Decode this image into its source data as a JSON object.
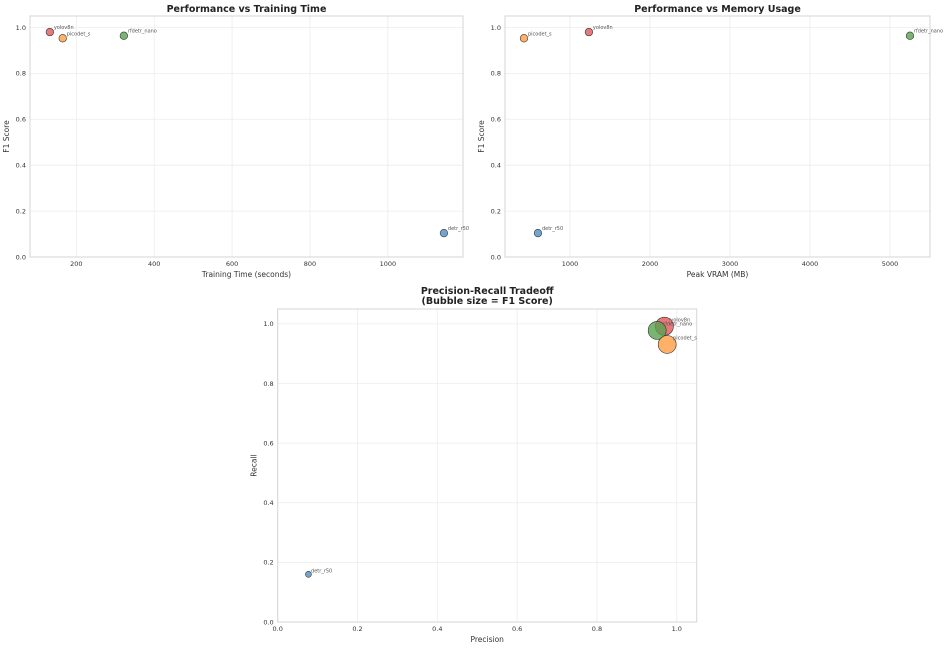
{
  "chart_data": [
    {
      "type": "scatter",
      "title": "Performance vs Training Time",
      "xlabel": "Training Time (seconds)",
      "ylabel": "F1 Score",
      "xlim": [
        81,
        1193
      ],
      "ylim": [
        0,
        1.05
      ],
      "xticks": [
        200,
        400,
        600,
        800,
        1000
      ],
      "yticks": [
        0.0,
        0.2,
        0.4,
        0.6,
        0.8,
        1.0
      ],
      "grid": true,
      "points": [
        {
          "label": "yolov8n",
          "x": 132,
          "y": 0.98,
          "color": "#e15759"
        },
        {
          "label": "picodet_s",
          "x": 165,
          "y": 0.953,
          "color": "#ff9d45"
        },
        {
          "label": "rfdetr_nano",
          "x": 322,
          "y": 0.964,
          "color": "#59a14f"
        },
        {
          "label": "detr_r50",
          "x": 1144,
          "y": 0.104,
          "color": "#4e8fc4"
        }
      ]
    },
    {
      "type": "scatter",
      "title": "Performance vs Memory Usage",
      "xlabel": "Peak VRAM (MB)",
      "ylabel": "F1 Score",
      "xlim": [
        188,
        5500
      ],
      "ylim": [
        0,
        1.05
      ],
      "xticks": [
        1000,
        2000,
        3000,
        4000,
        5000
      ],
      "yticks": [
        0.0,
        0.2,
        0.4,
        0.6,
        0.8,
        1.0
      ],
      "grid": true,
      "points": [
        {
          "label": "picodet_s",
          "x": 425,
          "y": 0.953,
          "color": "#ff9d45"
        },
        {
          "label": "yolov8n",
          "x": 1237,
          "y": 0.98,
          "color": "#e15759"
        },
        {
          "label": "rfdetr_nano",
          "x": 5250,
          "y": 0.964,
          "color": "#59a14f"
        },
        {
          "label": "detr_r50",
          "x": 600,
          "y": 0.104,
          "color": "#4e8fc4"
        }
      ]
    },
    {
      "type": "scatter",
      "title": "Precision-Recall Tradeoff",
      "subtitle": "(Bubble size = F1 Score)",
      "xlabel": "Precision",
      "ylabel": "Recall",
      "xlim": [
        0,
        1.05
      ],
      "ylim": [
        0,
        1.05
      ],
      "xticks": [
        0.0,
        0.2,
        0.4,
        0.6,
        0.8,
        1.0
      ],
      "yticks": [
        0.0,
        0.2,
        0.4,
        0.6,
        0.8,
        1.0
      ],
      "grid": true,
      "points": [
        {
          "label": "yolov8n",
          "x": 0.969,
          "y": 0.992,
          "size": 0.98,
          "color": "#e15759"
        },
        {
          "label": "rfdetr_nano",
          "x": 0.951,
          "y": 0.978,
          "size": 0.964,
          "color": "#59a14f"
        },
        {
          "label": "picodet_s",
          "x": 0.976,
          "y": 0.931,
          "size": 0.953,
          "color": "#ff9d45"
        },
        {
          "label": "detr_r50",
          "x": 0.077,
          "y": 0.16,
          "size": 0.104,
          "color": "#4e8fc4"
        }
      ]
    }
  ]
}
